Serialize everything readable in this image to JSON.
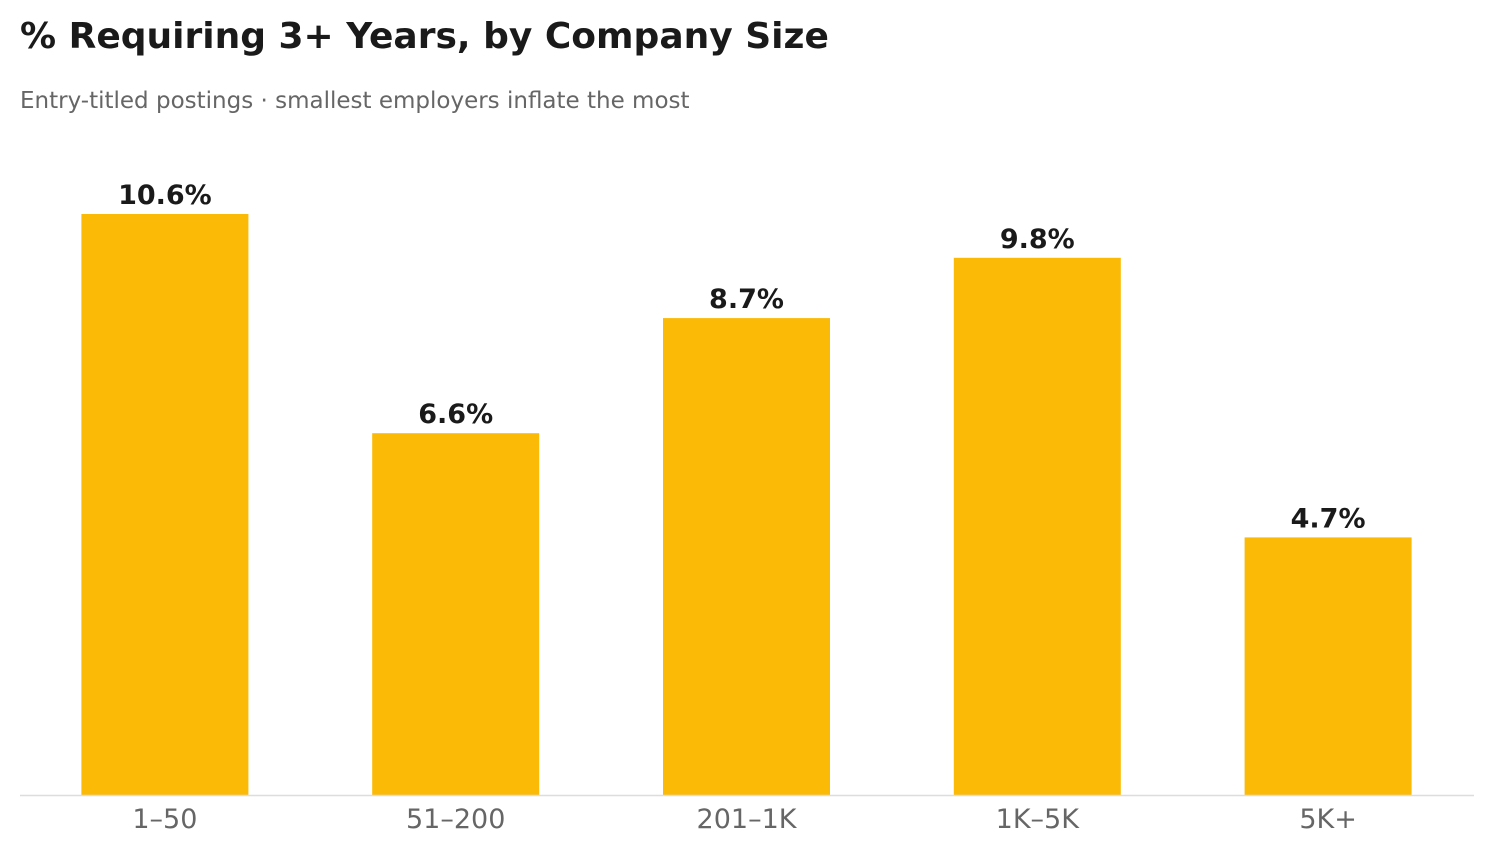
{
  "chart_data": {
    "type": "bar",
    "title": "% Requiring 3+ Years, by Company Size",
    "subtitle": "Entry-titled postings · smallest employers inflate the most",
    "categories": [
      "1–50",
      "51–200",
      "201–1K",
      "1K–5K",
      "5K+"
    ],
    "values": [
      10.6,
      6.6,
      8.7,
      9.8,
      4.7
    ],
    "value_labels": [
      "10.6%",
      "6.6%",
      "8.7%",
      "9.8%",
      "4.7%"
    ],
    "ylim": [
      0,
      10.6
    ],
    "grid": false,
    "legend": "none",
    "colors": {
      "bar": "#FBBA05",
      "axis": "#dddddd",
      "value_text": "#1a1a1a",
      "tick_text": "#666666"
    }
  }
}
